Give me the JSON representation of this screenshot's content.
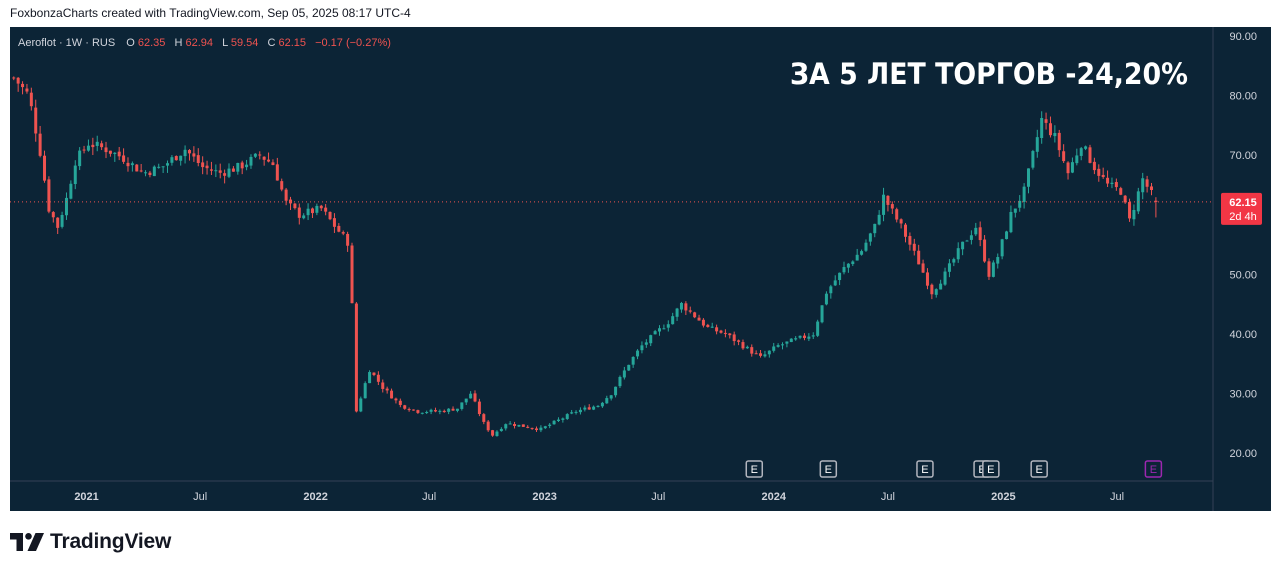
{
  "header": {
    "caption": "FoxbonzaCharts created with TradingView.com, Sep 05, 2025 08:17 UTC-4"
  },
  "legend": {
    "symbol": "Aeroflot · 1W · RUS",
    "open_label": "O",
    "open": "62.35",
    "high_label": "H",
    "high": "62.94",
    "low_label": "L",
    "low": "59.54",
    "close_label": "C",
    "close": "62.15",
    "change": "−0.17 (−0.27%)"
  },
  "overlay_text": "ЗА 5 ЛЕТ ТОРГОВ -24,20%",
  "price_badge": {
    "price": "62.15",
    "countdown": "2d 4h"
  },
  "footer": {
    "brand": "TradingView"
  },
  "colors": {
    "background": "#0c2436",
    "up": "#26a69a",
    "down": "#ef5350",
    "axis_text": "#d1d4dc",
    "overlay_text": "#ffffff",
    "badge": "#f23645",
    "earnings_marker": "#b2b5be",
    "earnings_marker_future": "#9c27b0"
  },
  "chart_data": {
    "type": "candlestick",
    "title": "Aeroflot · 1W · RUS",
    "ylim": [
      15,
      92
    ],
    "y_ticks": [
      "90.00",
      "80.00",
      "70.00",
      "60.00",
      "50.00",
      "40.00",
      "30.00",
      "20.00"
    ],
    "x_labels": [
      "2021",
      "Jul",
      "2022",
      "Jul",
      "2023",
      "Jul",
      "2024",
      "Jul",
      "2025",
      "Jul"
    ],
    "x_range": [
      "2020-09-01",
      "2025-12-01"
    ],
    "last_price": 62.15,
    "earnings_markers": [
      "2023-12-01",
      "2024-03-28",
      "2024-08-29",
      "2024-11-28",
      "2024-12-12",
      "2025-02-27"
    ],
    "earnings_future": [
      "2025-08-28"
    ],
    "earnings_label": "E",
    "price_path": [
      [
        "2020-09-07",
        83
      ],
      [
        "2020-10-01",
        80
      ],
      [
        "2020-10-20",
        70
      ],
      [
        "2020-11-02",
        61
      ],
      [
        "2020-11-16",
        58
      ],
      [
        "2020-12-01",
        63
      ],
      [
        "2020-12-14",
        69
      ],
      [
        "2021-01-04",
        72
      ],
      [
        "2021-02-01",
        71
      ],
      [
        "2021-03-01",
        69.5
      ],
      [
        "2021-04-01",
        67
      ],
      [
        "2021-05-01",
        68
      ],
      [
        "2021-06-07",
        71
      ],
      [
        "2021-07-05",
        68
      ],
      [
        "2021-08-01",
        67
      ],
      [
        "2021-09-01",
        68
      ],
      [
        "2021-10-04",
        70
      ],
      [
        "2021-10-25",
        68.5
      ],
      [
        "2021-11-15",
        62
      ],
      [
        "2021-12-06",
        60
      ],
      [
        "2022-01-10",
        61
      ],
      [
        "2022-02-01",
        58
      ],
      [
        "2022-02-24",
        55
      ],
      [
        "2022-03-07",
        27
      ],
      [
        "2022-03-28",
        34
      ],
      [
        "2022-04-18",
        31
      ],
      [
        "2022-05-16",
        28
      ],
      [
        "2022-06-13",
        27
      ],
      [
        "2022-07-18",
        27
      ],
      [
        "2022-08-15",
        27.5
      ],
      [
        "2022-09-05",
        30
      ],
      [
        "2022-09-26",
        25
      ],
      [
        "2022-10-10",
        23
      ],
      [
        "2022-10-31",
        25
      ],
      [
        "2022-11-28",
        24.5
      ],
      [
        "2022-12-26",
        24
      ],
      [
        "2023-01-23",
        25.5
      ],
      [
        "2023-02-20",
        27
      ],
      [
        "2023-03-27",
        28
      ],
      [
        "2023-04-17",
        30
      ],
      [
        "2023-05-15",
        35
      ],
      [
        "2023-06-05",
        38
      ],
      [
        "2023-06-26",
        40
      ],
      [
        "2023-07-17",
        42
      ],
      [
        "2023-08-07",
        45
      ],
      [
        "2023-08-28",
        43
      ],
      [
        "2023-09-18",
        41
      ],
      [
        "2023-10-16",
        40
      ],
      [
        "2023-11-13",
        38
      ],
      [
        "2023-12-11",
        36
      ],
      [
        "2024-01-08",
        38
      ],
      [
        "2024-02-05",
        39
      ],
      [
        "2024-03-04",
        40
      ],
      [
        "2024-03-25",
        47
      ],
      [
        "2024-04-22",
        51
      ],
      [
        "2024-05-20",
        54
      ],
      [
        "2024-06-10",
        58
      ],
      [
        "2024-06-24",
        63
      ],
      [
        "2024-07-22",
        58
      ],
      [
        "2024-08-19",
        52
      ],
      [
        "2024-09-09",
        47
      ],
      [
        "2024-09-30",
        50
      ],
      [
        "2024-10-28",
        55
      ],
      [
        "2024-11-18",
        58
      ],
      [
        "2024-12-09",
        50
      ],
      [
        "2024-12-23",
        53
      ],
      [
        "2025-01-13",
        60
      ],
      [
        "2025-02-03",
        64
      ],
      [
        "2025-02-17",
        70
      ],
      [
        "2025-03-03",
        76
      ],
      [
        "2025-03-24",
        73
      ],
      [
        "2025-04-14",
        67
      ],
      [
        "2025-05-05",
        72
      ],
      [
        "2025-05-26",
        68
      ],
      [
        "2025-06-16",
        65
      ],
      [
        "2025-07-07",
        64
      ],
      [
        "2025-07-21",
        59
      ],
      [
        "2025-08-11",
        66
      ],
      [
        "2025-09-01",
        62.15
      ]
    ]
  }
}
